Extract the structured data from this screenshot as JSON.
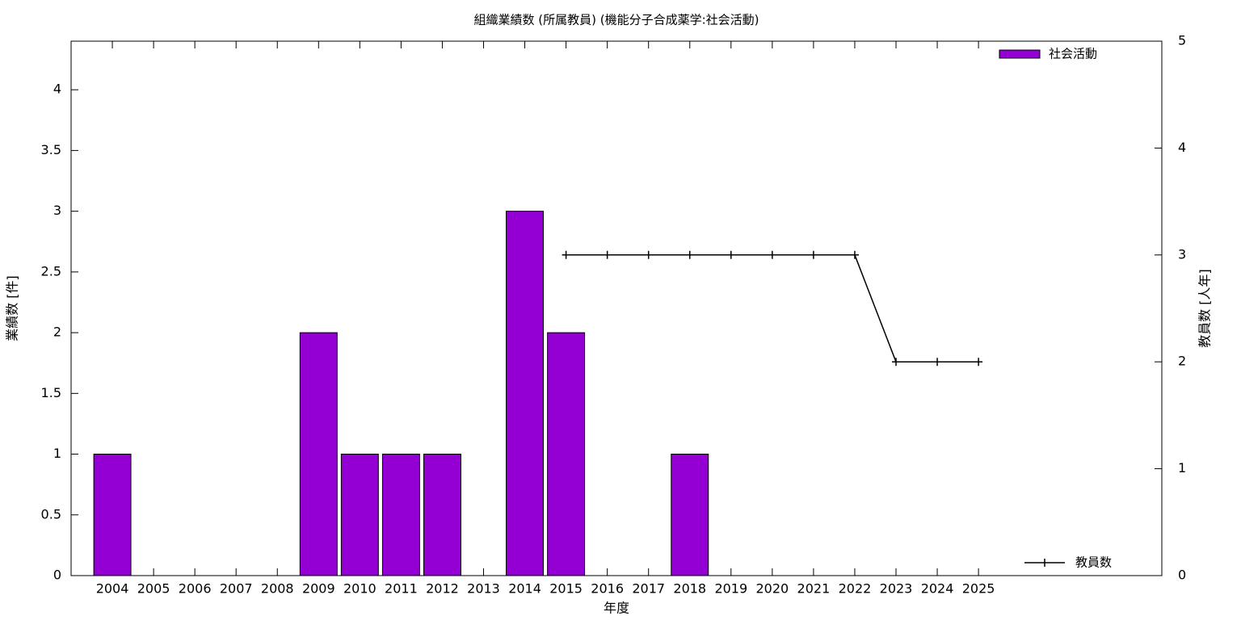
{
  "chart_data": {
    "type": "bar",
    "title": "組織業績数 (所属教員) (機能分子合成薬学:社会活動)",
    "x_label": "年度",
    "y_label": "業績数 [件]",
    "y2_label": "教員数 [人年]",
    "categories": [
      "2004",
      "2005",
      "2006",
      "2007",
      "2008",
      "2009",
      "2010",
      "2011",
      "2012",
      "2013",
      "2014",
      "2015",
      "2016",
      "2017",
      "2018",
      "2019",
      "2020",
      "2021",
      "2022",
      "2023",
      "2024",
      "2025"
    ],
    "series": [
      {
        "name": "社会活動",
        "type": "bar",
        "color": "#9400d3",
        "values": [
          1,
          0,
          0,
          0,
          0,
          2,
          1,
          1,
          1,
          0,
          3,
          2,
          0,
          0,
          1,
          0,
          0,
          0,
          0,
          0,
          0,
          0
        ]
      },
      {
        "name": "教員数",
        "type": "line",
        "axis": "y2",
        "color": "#000000",
        "values": [
          null,
          null,
          null,
          null,
          null,
          null,
          null,
          null,
          null,
          null,
          null,
          3,
          3,
          3,
          3,
          3,
          3,
          3,
          3,
          2,
          2,
          2
        ]
      }
    ],
    "ylim": [
      0,
      4.4
    ],
    "yticks": [
      0,
      0.5,
      1,
      1.5,
      2,
      2.5,
      3,
      3.5,
      4
    ],
    "y2lim": [
      0,
      5
    ],
    "y2ticks": [
      0,
      1,
      2,
      3,
      4,
      5
    ],
    "grid": false,
    "legend": "top-right"
  }
}
